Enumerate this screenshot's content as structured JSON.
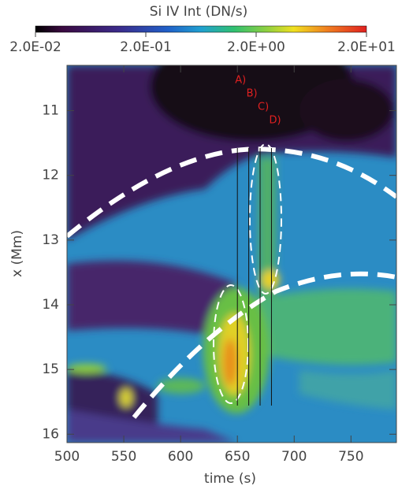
{
  "chart_data": {
    "type": "heatmap",
    "title": "Si IV Int (DN/s)",
    "xlabel": "time (s)",
    "ylabel": "x (Mm)",
    "xlim": [
      500,
      790
    ],
    "xticks": [
      500,
      550,
      600,
      650,
      700,
      750
    ],
    "ylim": [
      10.3,
      16.13
    ],
    "yticks": [
      11,
      12,
      13,
      14,
      15,
      16
    ],
    "colorbar": {
      "scale": "log",
      "lim": [
        0.02,
        20
      ],
      "ticks": [
        {
          "value": 0.02,
          "label": "2.0E-02"
        },
        {
          "value": 0.2,
          "label": "2.0E-01"
        },
        {
          "value": 2,
          "label": "2.0E+00"
        },
        {
          "value": 20,
          "label": "2.0E+01"
        }
      ]
    },
    "annotations": [
      {
        "label": "A)",
        "x": 650,
        "color": "#e02020"
      },
      {
        "label": "B)",
        "x": 660,
        "color": "#e02020"
      },
      {
        "label": "C)",
        "x": 670,
        "color": "#e02020"
      },
      {
        "label": "D)",
        "x": 680,
        "color": "#e02020"
      }
    ]
  }
}
